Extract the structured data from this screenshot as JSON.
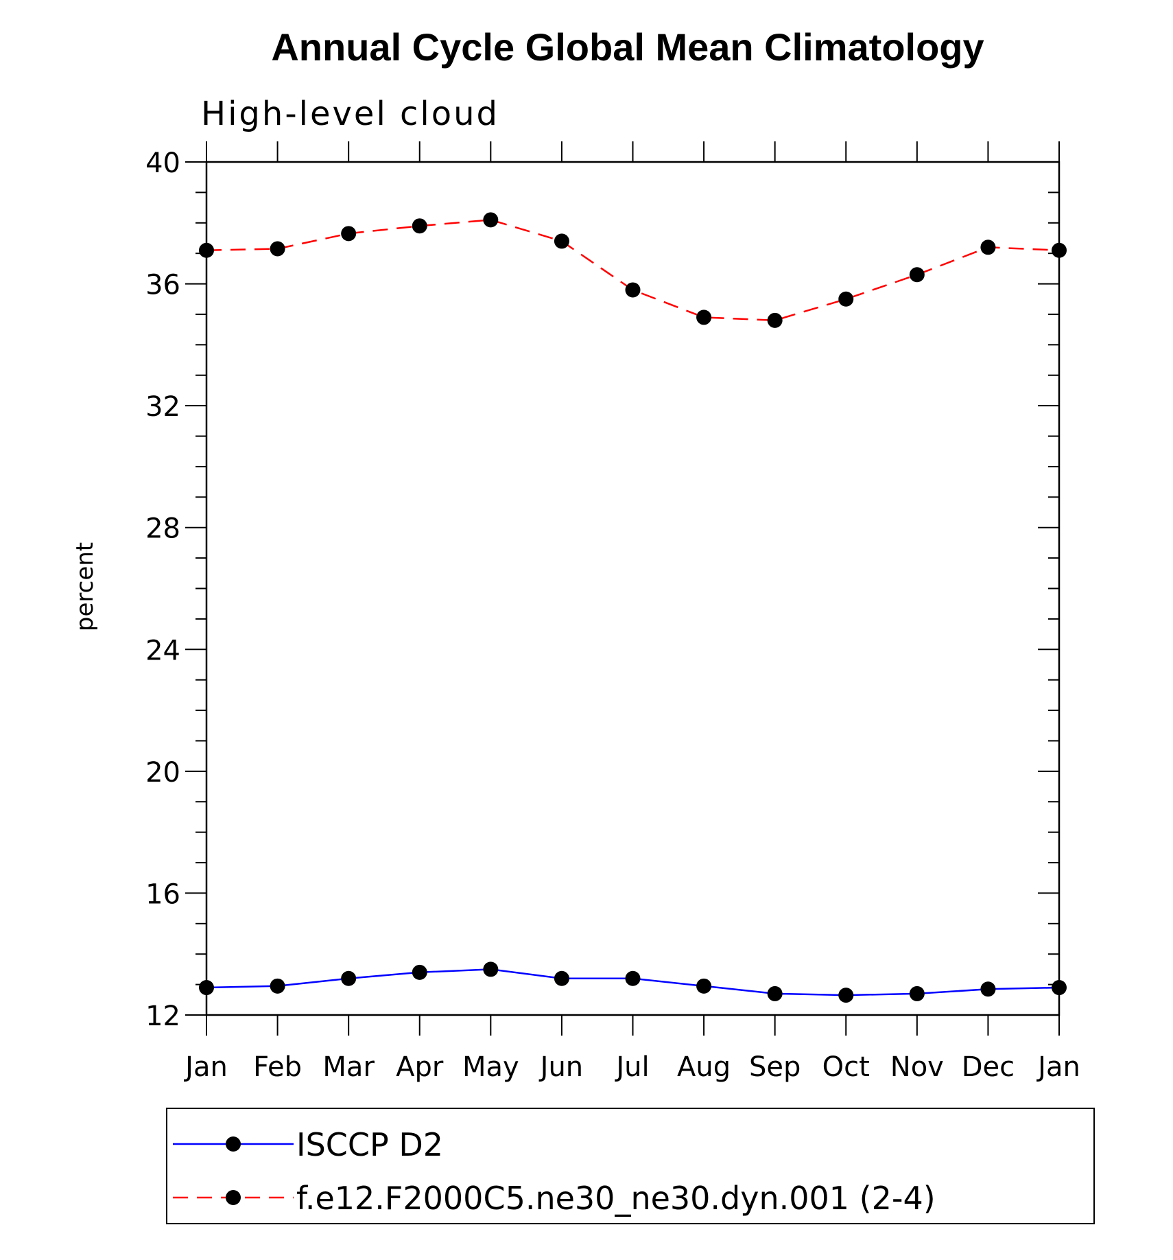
{
  "chart_data": {
    "type": "line",
    "title": "Annual Cycle Global Mean Climatology",
    "subtitle": "High-level cloud",
    "xlabel": "",
    "ylabel": "percent",
    "categories": [
      "Jan",
      "Feb",
      "Mar",
      "Apr",
      "May",
      "Jun",
      "Jul",
      "Aug",
      "Sep",
      "Oct",
      "Nov",
      "Dec",
      "Jan"
    ],
    "ylim": [
      12,
      40
    ],
    "yticks": [
      12,
      16,
      20,
      24,
      28,
      32,
      36,
      40
    ],
    "ytick_labels": [
      "12",
      "16",
      "20",
      "24",
      "28",
      "32",
      "36",
      "40"
    ],
    "grid": false,
    "legend_position": "bottom",
    "series": [
      {
        "name": "ISCCP D2",
        "color": "#0000ff",
        "line_style": "solid",
        "marker": "filled-circle",
        "values": [
          12.9,
          12.95,
          13.2,
          13.4,
          13.5,
          13.2,
          13.2,
          12.95,
          12.7,
          12.65,
          12.7,
          12.85,
          12.9
        ]
      },
      {
        "name": "f.e12.F2000C5.ne30_ne30.dyn.001 (2-4)",
        "color": "#ff0000",
        "line_style": "dashed",
        "marker": "filled-circle",
        "values": [
          37.1,
          37.15,
          37.65,
          37.9,
          38.1,
          37.4,
          35.8,
          34.9,
          34.8,
          35.5,
          36.3,
          37.2,
          37.1
        ]
      }
    ]
  }
}
